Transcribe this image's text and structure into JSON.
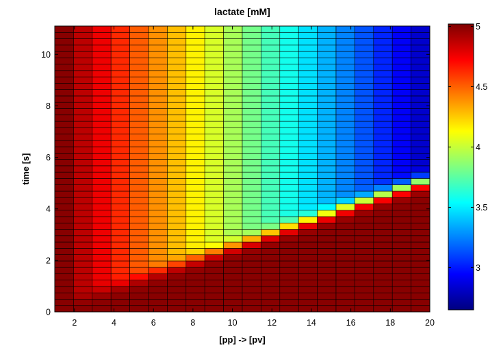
{
  "chart_data": {
    "type": "heatmap",
    "title": "lactate [mM]",
    "xlabel": "[pp] -> [pv]",
    "ylabel": "time [s]",
    "x_range": [
      1,
      20
    ],
    "y_range": [
      0,
      11.1
    ],
    "x_ticks": [
      "2",
      "4",
      "6",
      "8",
      "10",
      "12",
      "14",
      "16",
      "18",
      "20"
    ],
    "y_ticks": [
      "0",
      "2",
      "4",
      "6",
      "8",
      "10"
    ],
    "colorbar": {
      "colormap": "jet",
      "range": [
        2.65,
        5.02
      ],
      "ticks": [
        "3",
        "3.5",
        "4",
        "4.5",
        "5"
      ]
    },
    "grid": {
      "columns": 20,
      "rows": 45,
      "cell_edge_color": "#000000",
      "steady_state_profile": [
        5.0,
        4.88,
        4.76,
        4.63,
        4.51,
        4.39,
        4.28,
        4.16,
        4.04,
        3.93,
        3.81,
        3.7,
        3.58,
        3.47,
        3.36,
        3.25,
        3.14,
        3.03,
        2.93,
        2.83
      ],
      "initial_value": 5.0,
      "front_speed_columns_per_second": 4.0,
      "front_delay_seconds": 0.3,
      "front_width_seconds": 0.5
    }
  }
}
